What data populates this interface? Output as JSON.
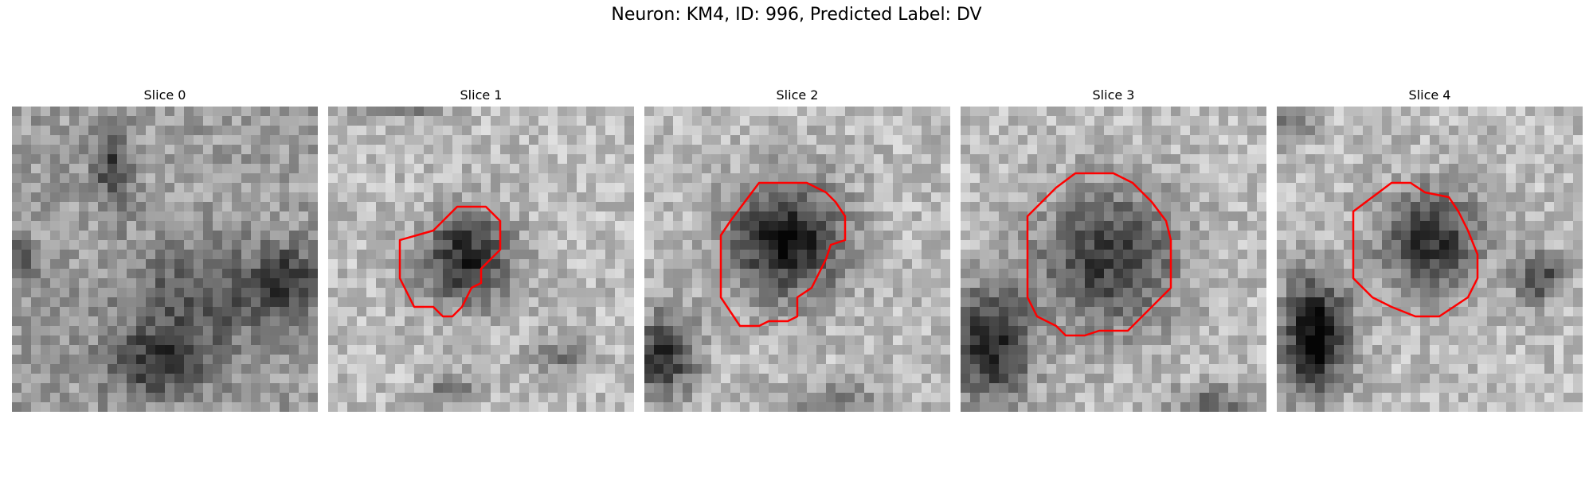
{
  "figure": {
    "title": "Neuron: KM4, ID: 996, Predicted Label: DV",
    "contour_color": "#ff0000",
    "colormap": "gray"
  },
  "slices": [
    {
      "label": "Slice 0",
      "has_contour": false
    },
    {
      "label": "Slice 1",
      "has_contour": true
    },
    {
      "label": "Slice 2",
      "has_contour": true
    },
    {
      "label": "Slice 3",
      "has_contour": true
    },
    {
      "label": "Slice 4",
      "has_contour": true
    }
  ]
}
